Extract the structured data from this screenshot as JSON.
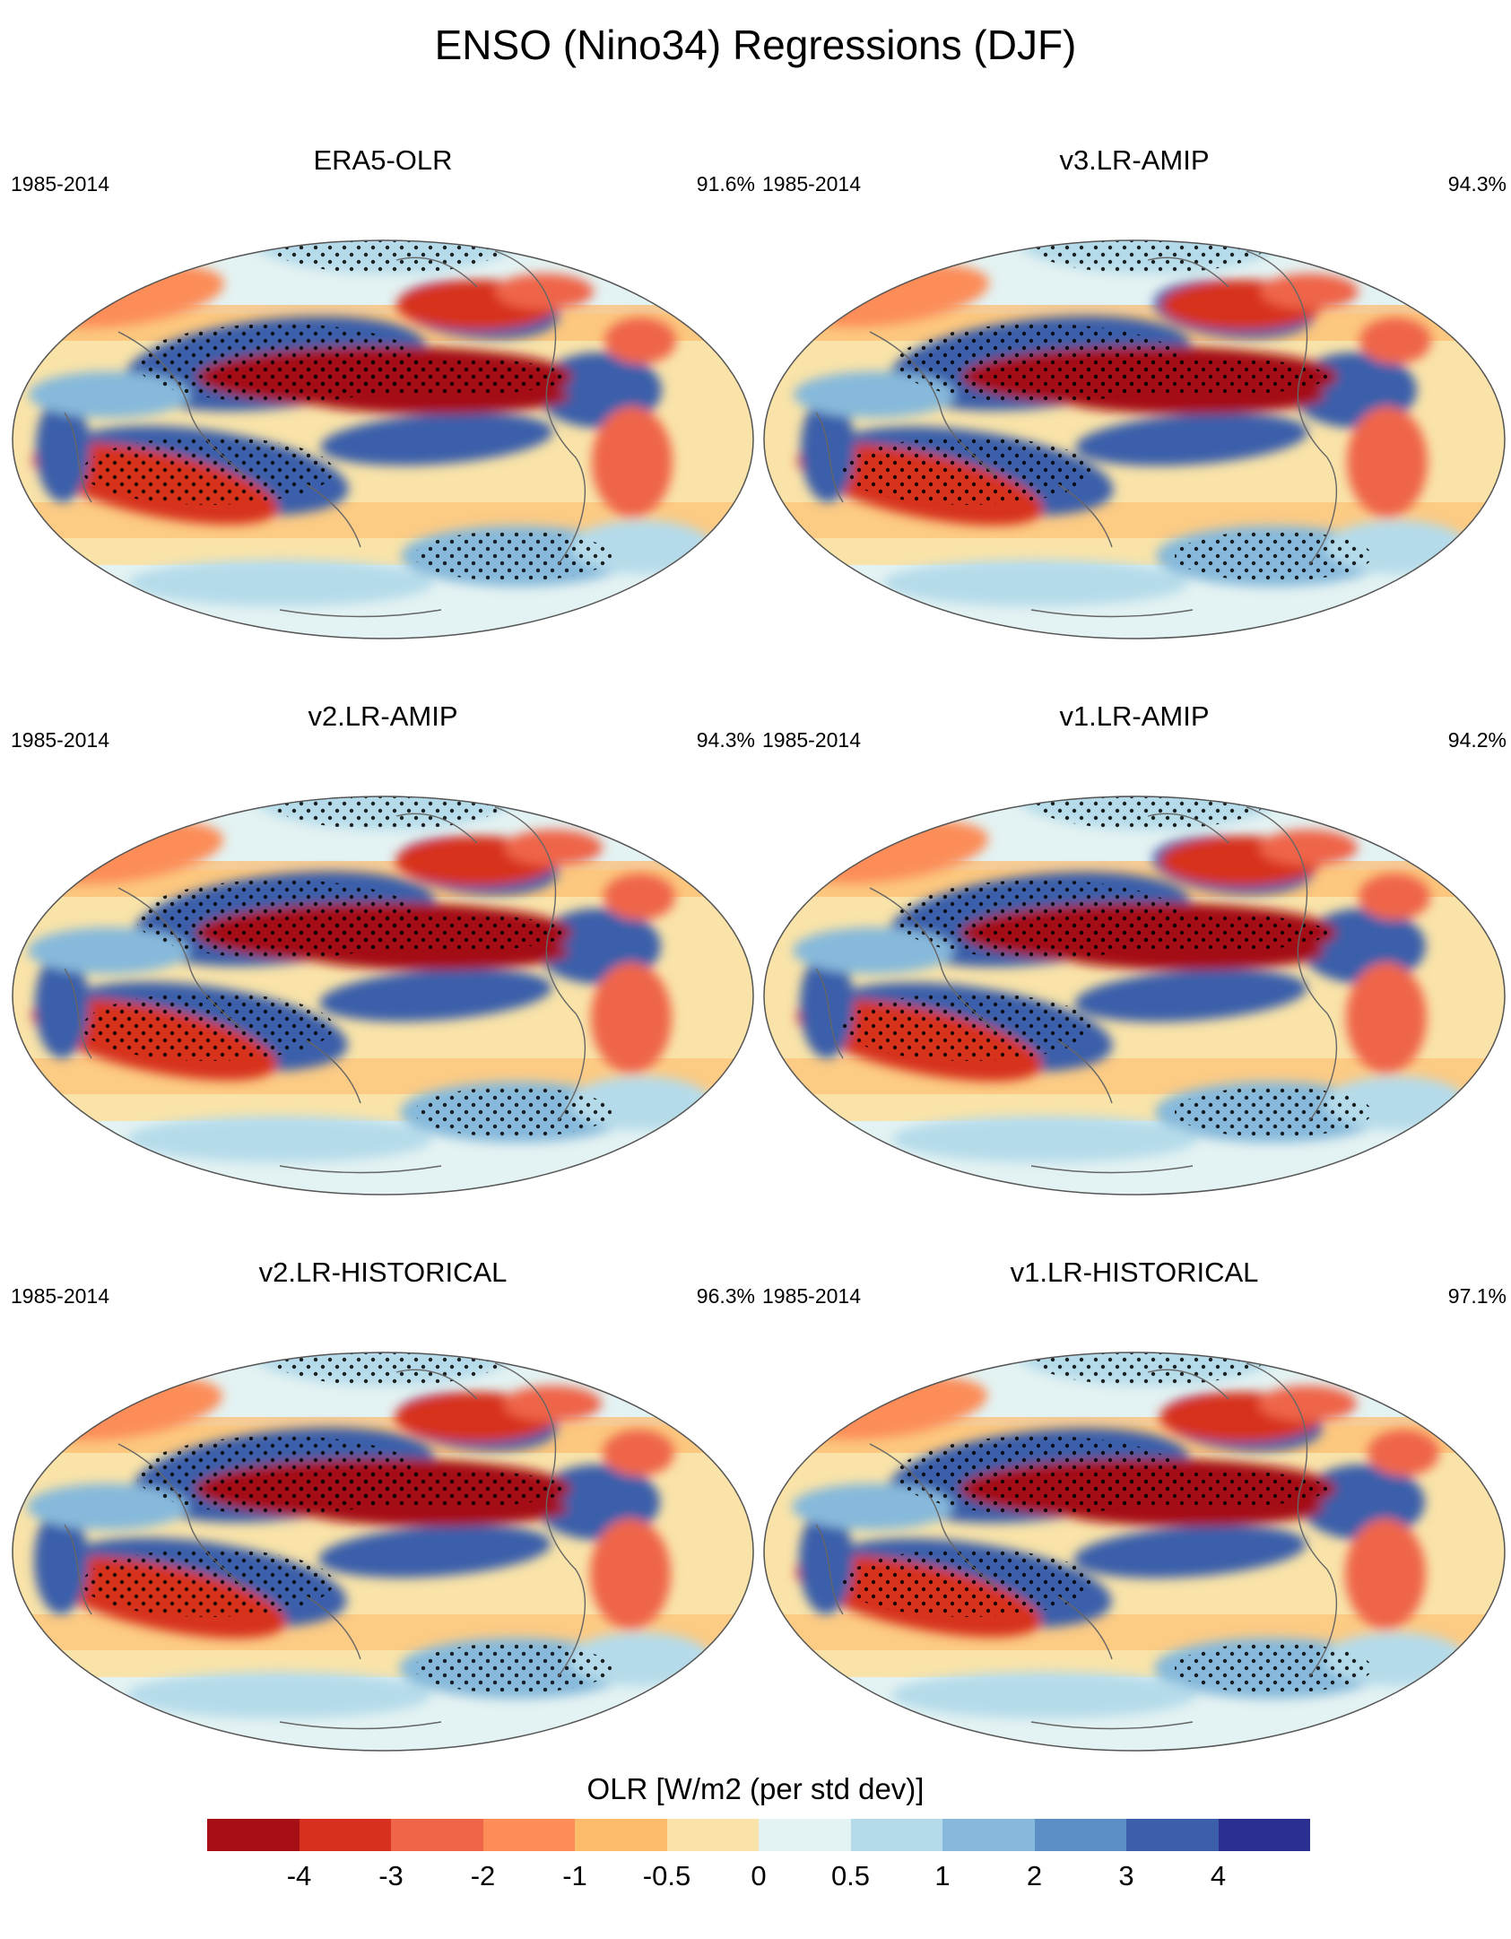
{
  "title": "ENSO (Nino34) Regressions (DJF)",
  "panels": [
    {
      "title": "ERA5-OLR",
      "period": "1985-2014",
      "percent": "91.6%"
    },
    {
      "title": "v3.LR-AMIP",
      "period": "1985-2014",
      "percent": "94.3%"
    },
    {
      "title": "v2.LR-AMIP",
      "period": "1985-2014",
      "percent": "94.3%"
    },
    {
      "title": "v1.LR-AMIP",
      "period": "1985-2014",
      "percent": "94.2%"
    },
    {
      "title": "v2.LR-HISTORICAL",
      "period": "1985-2014",
      "percent": "96.3%"
    },
    {
      "title": "v1.LR-HISTORICAL",
      "period": "1985-2014",
      "percent": "97.1%"
    }
  ],
  "colorbar": {
    "title": "OLR [W/m2 (per std dev)]",
    "tick_labels": [
      "-4",
      "-3",
      "-2",
      "-1",
      "-0.5",
      "0",
      "0.5",
      "1",
      "2",
      "3",
      "4"
    ],
    "colors": [
      "#a50f15",
      "#d7301f",
      "#ef6548",
      "#fc8d59",
      "#fdbb6c",
      "#f9e3a8",
      "#e3f2f2",
      "#b5dbea",
      "#86b9db",
      "#5b8fc6",
      "#3b5faa",
      "#2b2f8f"
    ]
  },
  "colors": {
    "strong_negative": "#a50f15",
    "strong_positive": "#2b2f8f",
    "neutral": "#e3f2f2",
    "coastline": "#666666",
    "stipple": "#000000"
  }
}
